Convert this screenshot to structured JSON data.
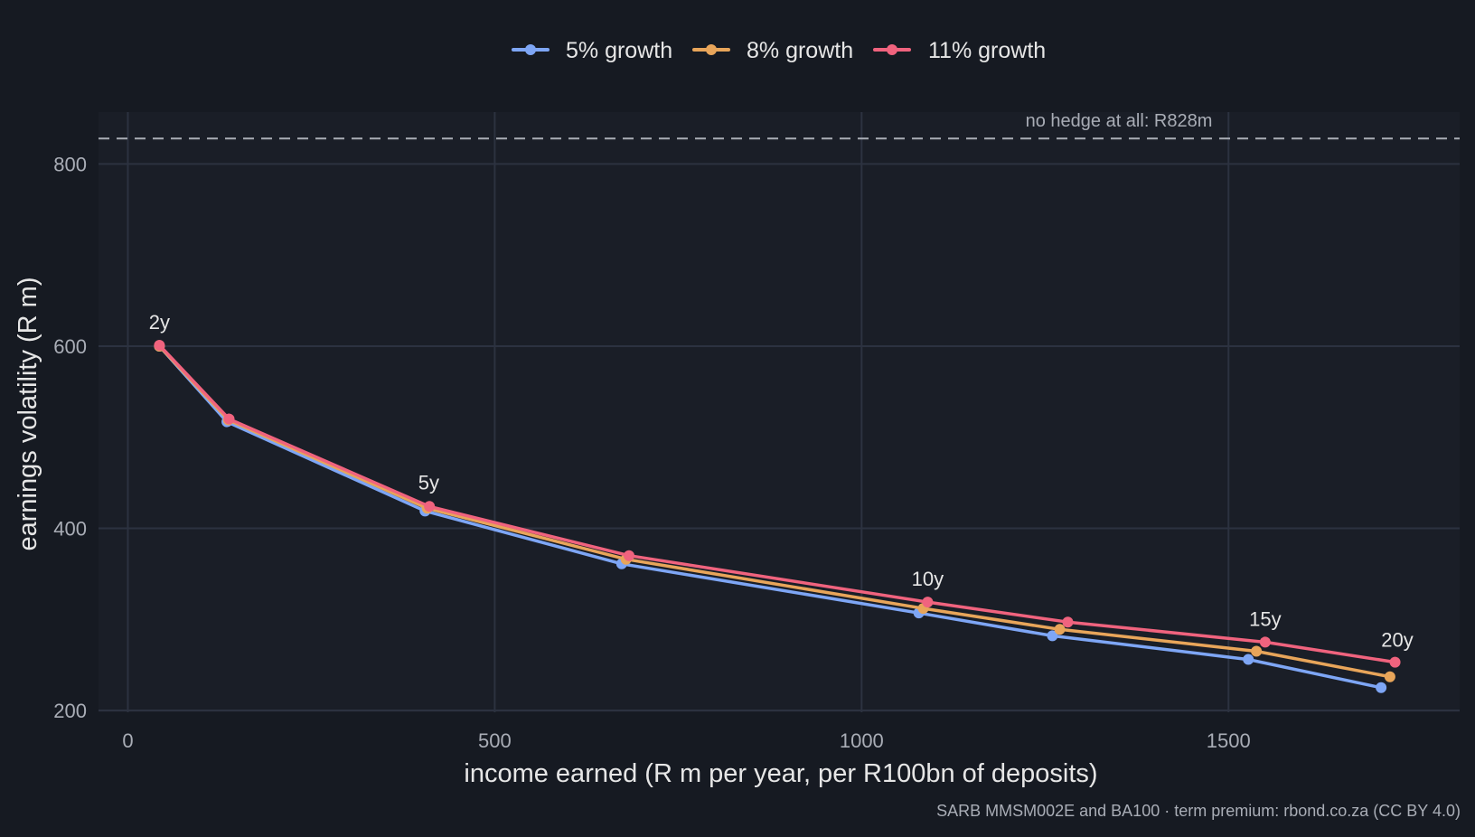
{
  "chart_data": {
    "type": "line",
    "title": "",
    "xlabel": "income earned (R m per year, per R100bn of deposits)",
    "ylabel": "earnings volatility (R m)",
    "caption": "SARB MMSM002E and BA100 · term premium: rbond.co.za (CC BY 4.0)",
    "xlim": [
      -40,
      1815
    ],
    "ylim": [
      198,
      857
    ],
    "x_ticks": [
      0,
      500,
      1000,
      1500
    ],
    "y_ticks": [
      200,
      400,
      600,
      800
    ],
    "grid": true,
    "legend_position": "top",
    "reference_line": {
      "y": 828,
      "label": "no hedge at all: R828m",
      "style": "dashed"
    },
    "point_labels": [
      {
        "text": "2y",
        "x": 43,
        "y": 600
      },
      {
        "text": "5y",
        "x": 410,
        "y": 424
      },
      {
        "text": "10y",
        "x": 1090,
        "y": 318
      },
      {
        "text": "15y",
        "x": 1550,
        "y": 274
      },
      {
        "text": "20y",
        "x": 1730,
        "y": 251
      }
    ],
    "series": [
      {
        "name": "5% growth",
        "color": "#7ea6f5",
        "points": [
          [
            43,
            600
          ],
          [
            135,
            517
          ],
          [
            405,
            419
          ],
          [
            673,
            361
          ],
          [
            1078,
            307
          ],
          [
            1260,
            282
          ],
          [
            1527,
            256
          ],
          [
            1708,
            225
          ]
        ]
      },
      {
        "name": "8% growth",
        "color": "#e8a55a",
        "points": [
          [
            43,
            600
          ],
          [
            137,
            519
          ],
          [
            408,
            422
          ],
          [
            679,
            366
          ],
          [
            1084,
            312
          ],
          [
            1270,
            289
          ],
          [
            1538,
            265
          ],
          [
            1720,
            237
          ]
        ]
      },
      {
        "name": "11% growth",
        "color": "#f0637e",
        "points": [
          [
            43,
            601
          ],
          [
            138,
            520
          ],
          [
            411,
            424
          ],
          [
            683,
            370
          ],
          [
            1090,
            319
          ],
          [
            1281,
            297
          ],
          [
            1550,
            275
          ],
          [
            1727,
            253
          ]
        ]
      }
    ]
  },
  "colors": {
    "background": "#161a22",
    "panel": "#1a1e27",
    "grid": "#2c3240",
    "text_main": "#e6e6e6",
    "text_muted": "#a9adb6",
    "reference_line": "#a9adb6"
  }
}
